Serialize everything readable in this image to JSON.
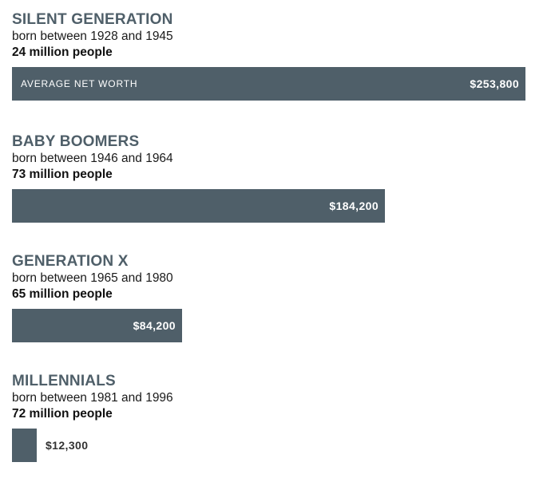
{
  "colors": {
    "bar": "#4f5f69",
    "heading": "#4f5f69"
  },
  "chart_data": {
    "type": "bar",
    "orientation": "horizontal",
    "metric_label": "AVERAGE NET WORTH",
    "categories": [
      "SILENT GENERATION",
      "BABY BOOMERS",
      "GENERATION X",
      "MILLENNIALS"
    ],
    "values": [
      253800,
      184200,
      84200,
      12300
    ],
    "value_labels": [
      "$253,800",
      "$184,200",
      "$84,200",
      "$12,300"
    ],
    "xlim": [
      0,
      253800
    ]
  },
  "generations": [
    {
      "name": "SILENT GENERATION",
      "born": "born between 1928 and 1945",
      "population": "24 million people",
      "value_label": "$253,800"
    },
    {
      "name": "BABY BOOMERS",
      "born": "born between 1946 and 1964",
      "population": "73 million people",
      "value_label": "$184,200"
    },
    {
      "name": "GENERATION X",
      "born": "born between 1965 and 1980",
      "population": "65 million people",
      "value_label": "$84,200"
    },
    {
      "name": "MILLENNIALS",
      "born": "born between 1981 and 1996",
      "population": "72 million people",
      "value_label": "$12,300"
    }
  ]
}
